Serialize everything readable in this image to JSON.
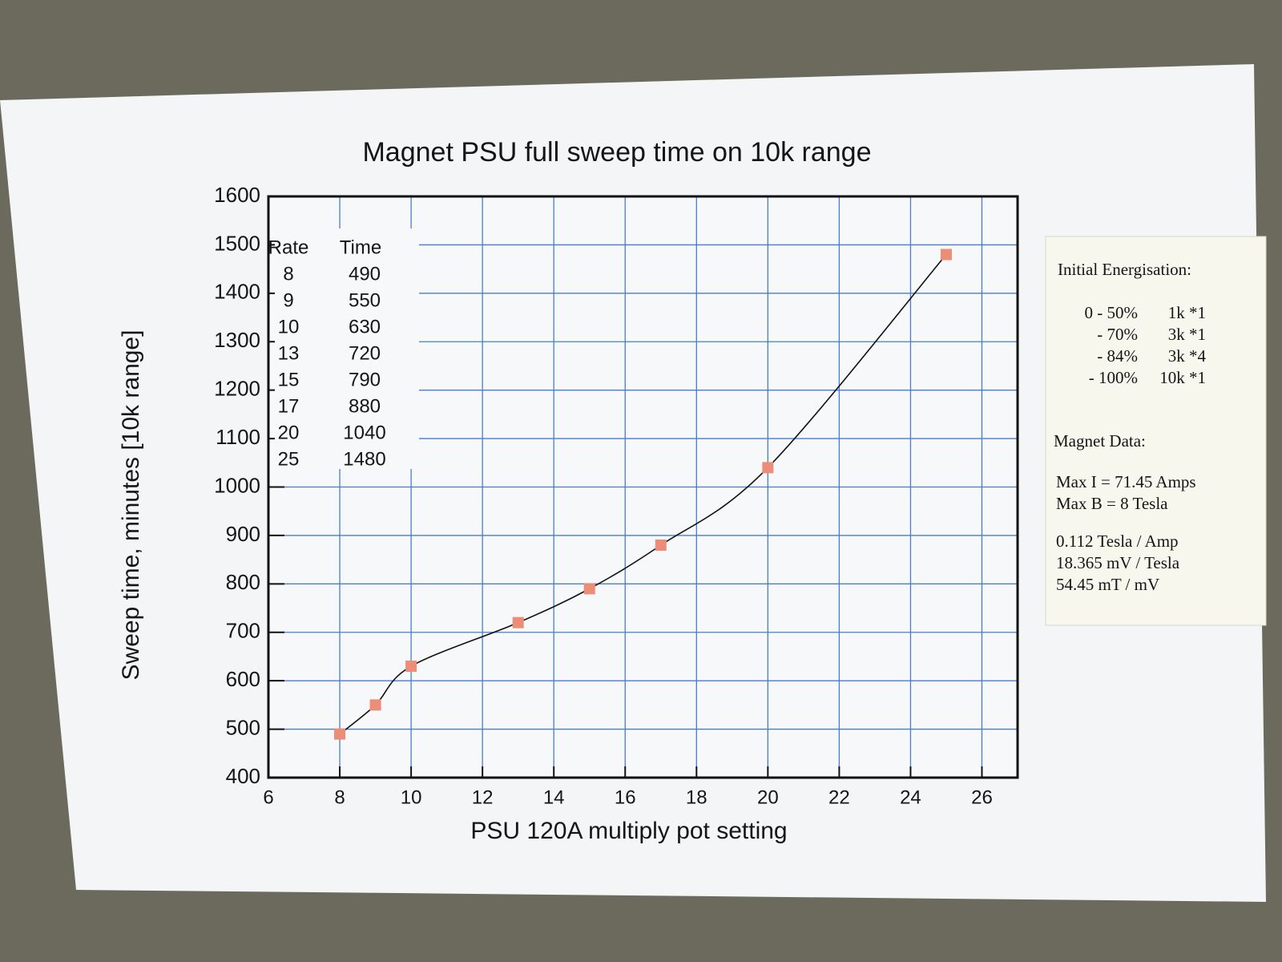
{
  "chart_data": {
    "type": "scatter",
    "title": "Magnet PSU full sweep time on 10k range",
    "x_label": "PSU 120A multiply pot setting",
    "y_label": "Sweep time, minutes [10k range]",
    "x": [
      8,
      9,
      10,
      13,
      15,
      17,
      20,
      25
    ],
    "values": [
      490,
      550,
      630,
      720,
      790,
      880,
      1040,
      1480
    ],
    "color": "#ec8d78",
    "line_color": "#111111",
    "grid_color": "#4a7ccc",
    "table_header": [
      "Rate",
      "Time"
    ],
    "xlim": [
      6,
      27
    ],
    "xticks": [
      6,
      8,
      10,
      12,
      14,
      16,
      18,
      20,
      22,
      24,
      26
    ],
    "ylim": [
      400,
      1600
    ],
    "yticks": [
      400,
      500,
      600,
      700,
      800,
      900,
      1000,
      1100,
      1200,
      1300,
      1400,
      1500,
      1600
    ],
    "grid": true
  },
  "note": {
    "title": "Initial Energisation:",
    "rows": [
      [
        "0 -  50%",
        "1k *1"
      ],
      [
        "-  70%",
        "3k *1"
      ],
      [
        "-  84%",
        "3k *4"
      ],
      [
        "- 100%",
        "10k *1"
      ]
    ],
    "magnet_title": "Magnet Data:",
    "lines": [
      "Max I  = 71.45 Amps",
      "Max B = 8 Tesla",
      "0.112 Tesla / Amp",
      "18.365 mV / Tesla",
      "54.45   mT / mV"
    ]
  }
}
